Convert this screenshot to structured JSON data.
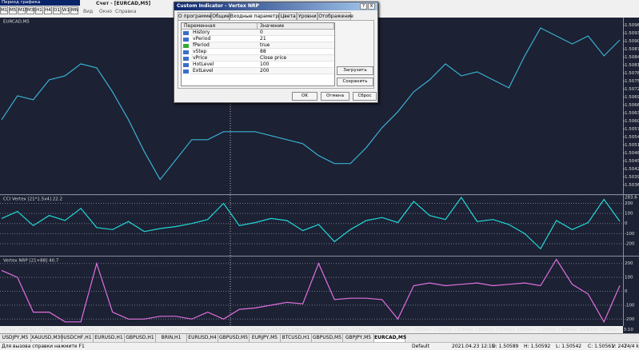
{
  "toolbar": {
    "label": "Период графика",
    "periods": [
      "M1",
      "M5",
      "M15",
      "M30",
      "H1",
      "H4",
      "D1",
      "W1",
      "MN"
    ]
  },
  "window_title": "Счет - [EURCAD,M5]",
  "menu": [
    "Вид",
    "Окно",
    "Справка"
  ],
  "chart_data": [
    {
      "type": "line",
      "title": "EURCAD,M5",
      "color": "#3ab0d0",
      "ylim": [
        1.5033,
        1.50985
      ],
      "yticks": [
        1.50965,
        1.50935,
        1.50905,
        1.50875,
        1.50845,
        1.50815,
        1.50785,
        1.50755,
        1.50725,
        1.50695,
        1.50665,
        1.50635,
        1.50605,
        1.50575,
        1.50545,
        1.50515,
        1.50485,
        1.50455,
        1.50425,
        1.50395,
        1.50365
      ],
      "values": [
        1.5061,
        1.507,
        1.50685,
        1.5076,
        1.50775,
        1.5082,
        1.50805,
        1.50715,
        1.5061,
        1.5049,
        1.50385,
        1.5046,
        1.50535,
        1.50535,
        1.50565,
        1.50565,
        1.50565,
        1.5055,
        1.50535,
        1.5052,
        1.50475,
        1.50445,
        1.50445,
        1.50505,
        1.5058,
        1.5064,
        1.50715,
        1.5076,
        1.5082,
        1.50775,
        1.5079,
        1.5076,
        1.5073,
        1.5085,
        1.50955,
        1.50925,
        1.50895,
        1.50925,
        1.5085,
        1.5091
      ]
    },
    {
      "type": "line",
      "title": "CCI Vertex [21*1.5x4] 22.2",
      "color": "#22d8d8",
      "ylim": [
        -319.4,
        283.6
      ],
      "yticks": [
        283.6,
        200,
        100,
        0,
        -100,
        -200
      ],
      "values": [
        50,
        120,
        -20,
        80,
        30,
        150,
        -40,
        -60,
        20,
        -80,
        -50,
        -30,
        0,
        40,
        200,
        -20,
        10,
        50,
        30,
        -70,
        -10,
        -180,
        -60,
        30,
        60,
        10,
        220,
        80,
        40,
        260,
        20,
        40,
        -10,
        -100,
        -250,
        30,
        -60,
        10,
        240,
        22
      ]
    },
    {
      "type": "line",
      "title": "Vertex NRP [21+88] 40.7",
      "color": "#e070e0",
      "ylim": [
        -250,
        250
      ],
      "yticks": [
        200,
        100,
        0,
        -100,
        -200
      ],
      "values": [
        150,
        100,
        -150,
        -150,
        -220,
        -220,
        200,
        -150,
        -200,
        -200,
        -180,
        -180,
        -200,
        -150,
        -200,
        -130,
        -120,
        -100,
        -80,
        -90,
        200,
        -60,
        -50,
        -50,
        -60,
        -200,
        40,
        60,
        40,
        50,
        60,
        40,
        50,
        60,
        40,
        230,
        50,
        -20,
        -220,
        40.7
      ]
    }
  ],
  "time_axis": [
    "22 Apr 2021",
    "22 Apr 11:30",
    "22 Apr 13:10",
    "22 Apr 14:30",
    "22 Apr 15:10",
    "22 Apr 16:30",
    "22 Apr 17:10",
    "22 Apr 18:30",
    "22 Apr 19:50",
    "22 Apr 20:30",
    "22 Apr 21:50",
    "22 Apr 23:10",
    "23 Apr 00:30",
    "23 Apr 01:50",
    "23 Apr 03:10",
    "23 Apr 04:30",
    "23 Apr 05:50",
    "23 Apr 07:10",
    "23 Apr 08:30",
    "23 Apr 09:50",
    "23 Apr 11:10",
    "23 Apr 12:30",
    "23 Apr 13:50",
    "23 Apr 15:10",
    "23 Apr 16:30",
    "23 Apr 17:50",
    "23 Apr 19:10",
    "23 Apr 20:30",
    "23 Apr 21:50",
    "23 Apr 23:10"
  ],
  "tabs": [
    "USDJPY,M5",
    "XAUUSD,M30",
    "USDCHF,H1",
    "EURUSD,H1",
    "GBPUSD,H1",
    "BRIN,H1",
    "EURUSD,H4",
    "GBPUSD,M5",
    "EURJPY,M5",
    "BTCUSD,H1",
    "GBPUSD,M5",
    "GBPJPY,M5",
    "EURCAD,M5"
  ],
  "status": {
    "help": "Для вызова справки нажмите F1",
    "profile": "Default",
    "time": "2021.04.23 12:15",
    "open": "O: 1.50589",
    "high": "H: 1.50592",
    "low": "L: 1.50542",
    "close": "C: 1.50561",
    "volume": "V: 242",
    "traffic": "74/4 kb"
  },
  "dialog": {
    "title": "Custom Indicator - Vertex NRP",
    "title_buttons": [
      "?",
      "X"
    ],
    "tabs": [
      "О программе",
      "Общие",
      "Входные параметры",
      "Цвета",
      "Уровни",
      "Отображение"
    ],
    "columns": [
      "Переменная",
      "Значение"
    ],
    "rows": [
      [
        "History",
        "0"
      ],
      [
        "vPeriod",
        "21"
      ],
      [
        "fPeriod",
        "true"
      ],
      [
        "vStep",
        "88"
      ],
      [
        "vPrice",
        "Close price"
      ],
      [
        "HotLevel",
        "100"
      ],
      [
        "ExtLevel",
        "200"
      ]
    ],
    "side_buttons": [
      "Загрузить",
      "Сохранить"
    ],
    "buttons": [
      "OK",
      "Отмена",
      "Сброс"
    ]
  }
}
